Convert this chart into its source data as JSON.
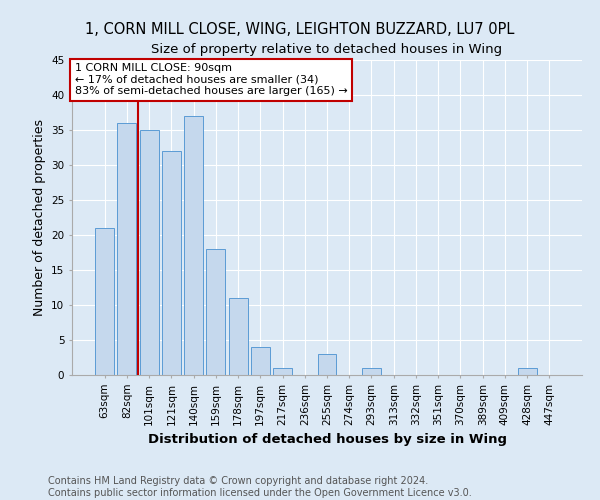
{
  "title": "1, CORN MILL CLOSE, WING, LEIGHTON BUZZARD, LU7 0PL",
  "subtitle": "Size of property relative to detached houses in Wing",
  "xlabel": "Distribution of detached houses by size in Wing",
  "ylabel": "Number of detached properties",
  "categories": [
    "63sqm",
    "82sqm",
    "101sqm",
    "121sqm",
    "140sqm",
    "159sqm",
    "178sqm",
    "197sqm",
    "217sqm",
    "236sqm",
    "255sqm",
    "274sqm",
    "293sqm",
    "313sqm",
    "332sqm",
    "351sqm",
    "370sqm",
    "389sqm",
    "409sqm",
    "428sqm",
    "447sqm"
  ],
  "values": [
    21,
    36,
    35,
    32,
    37,
    18,
    11,
    4,
    1,
    0,
    3,
    0,
    1,
    0,
    0,
    0,
    0,
    0,
    0,
    1,
    0
  ],
  "bar_color": "#c5d8ed",
  "bar_edge_color": "#5b9bd5",
  "vline_x_index": 1.5,
  "vline_color": "#c00000",
  "annotation_text": "1 CORN MILL CLOSE: 90sqm\n← 17% of detached houses are smaller (34)\n83% of semi-detached houses are larger (165) →",
  "annotation_box_edge_color": "#c00000",
  "ylim": [
    0,
    45
  ],
  "yticks": [
    0,
    5,
    10,
    15,
    20,
    25,
    30,
    35,
    40,
    45
  ],
  "footer": "Contains HM Land Registry data © Crown copyright and database right 2024.\nContains public sector information licensed under the Open Government Licence v3.0.",
  "background_color": "#dce9f5",
  "plot_bg_color": "#dce9f5",
  "title_fontsize": 10.5,
  "subtitle_fontsize": 9.5,
  "axis_label_fontsize": 9,
  "tick_fontsize": 7.5,
  "annotation_fontsize": 8,
  "footer_fontsize": 7
}
